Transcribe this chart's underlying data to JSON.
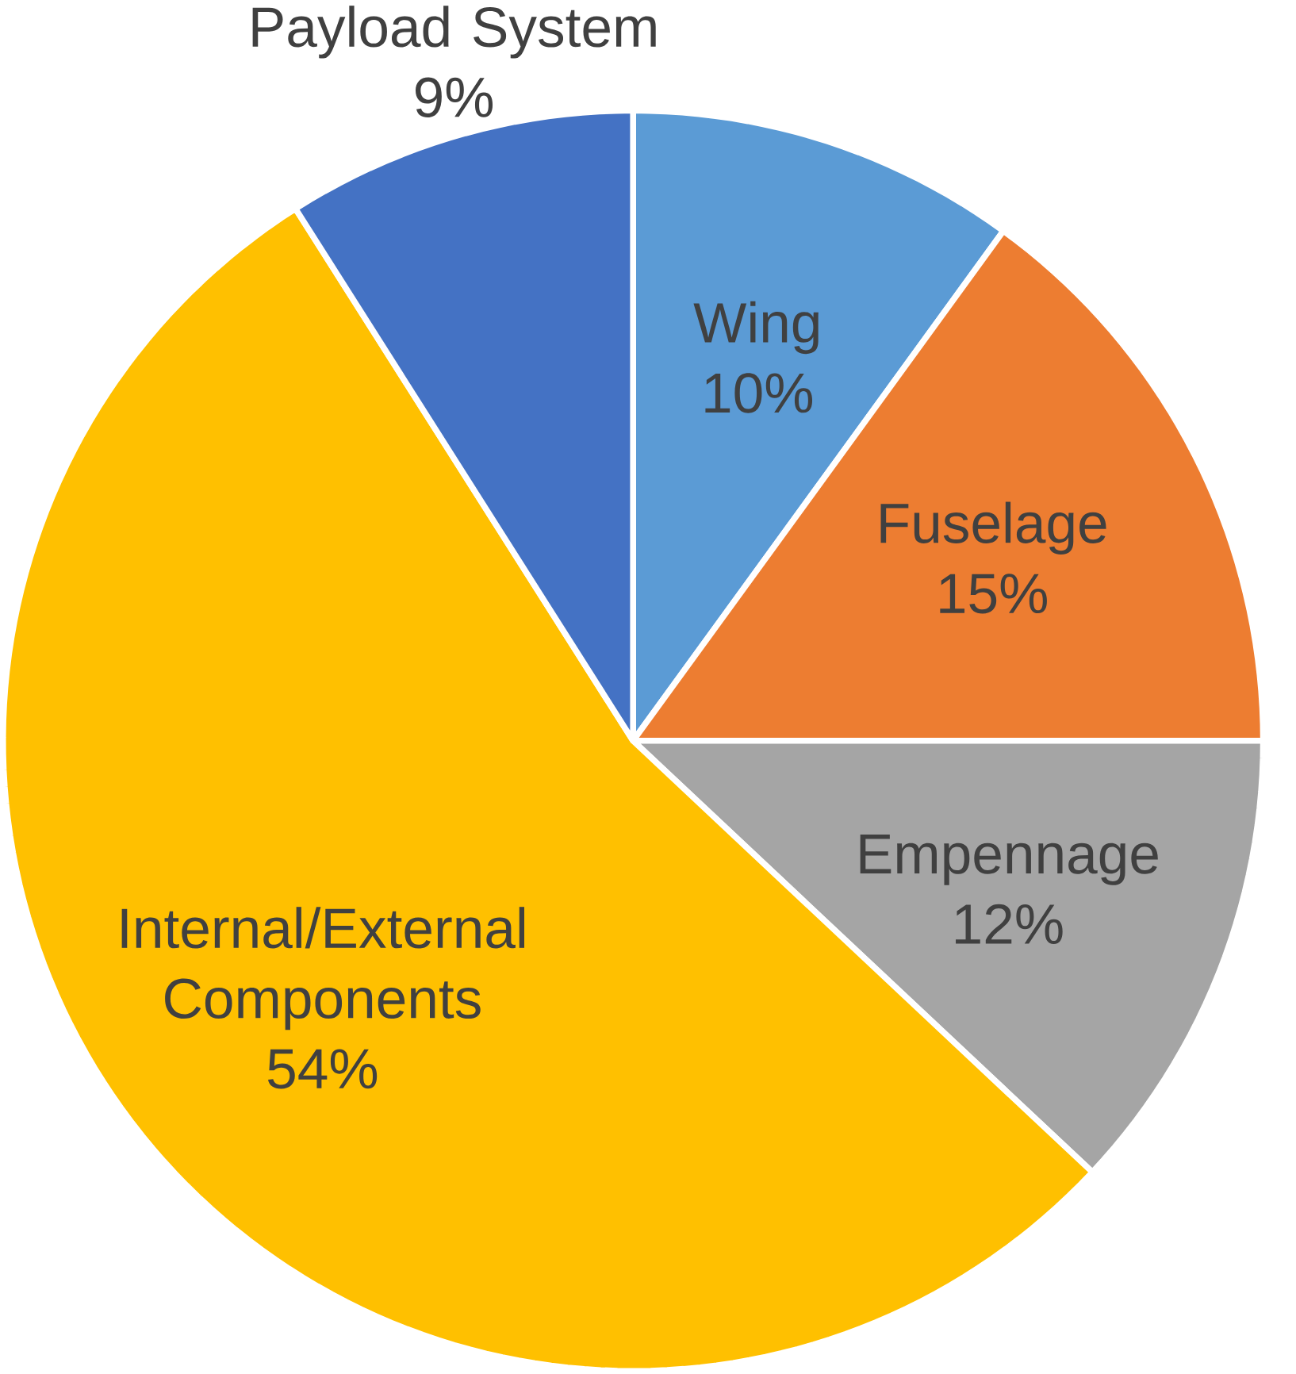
{
  "chart_data": {
    "type": "pie",
    "categories": [
      "Wing",
      "Fuselage",
      "Empennage",
      "Internal/External Components",
      "Payload System"
    ],
    "values": [
      10,
      15,
      12,
      54,
      9
    ],
    "value_labels": [
      "10%",
      "15%",
      "12%",
      "54%",
      "9%"
    ],
    "colors": [
      "#5b9bd5",
      "#ed7d31",
      "#a5a5a5",
      "#ffc000",
      "#4472c4"
    ]
  }
}
